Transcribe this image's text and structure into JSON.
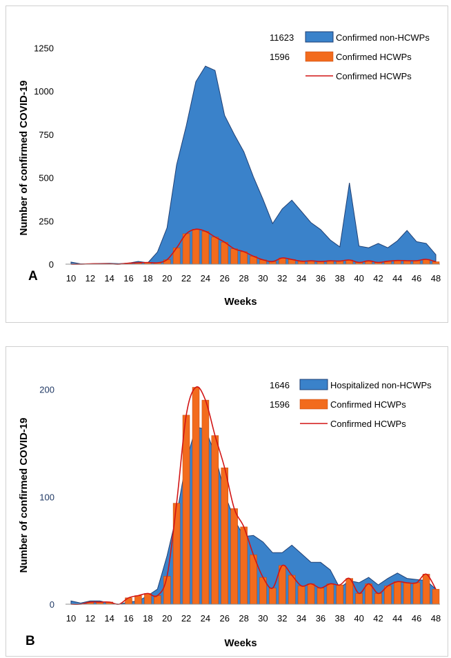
{
  "colors": {
    "blue": "#3a82ca",
    "blue_edge": "#1f3f73",
    "orange": "#f26b1d",
    "orange_edge": "#c0440a",
    "line": "#d21414"
  },
  "chart_data": [
    {
      "panel_label": "A",
      "type": "area",
      "xlabel": "Weeks",
      "ylabel": "Number of confirmed COVID-19",
      "xlim": [
        10,
        48
      ],
      "ylim": [
        0,
        1300
      ],
      "yticks": [
        0,
        250,
        500,
        750,
        1000,
        1250
      ],
      "xticks": [
        10,
        12,
        14,
        16,
        18,
        20,
        22,
        24,
        26,
        28,
        30,
        32,
        34,
        36,
        38,
        40,
        42,
        44,
        46,
        48
      ],
      "weeks": [
        10,
        11,
        12,
        13,
        14,
        15,
        16,
        17,
        18,
        19,
        20,
        21,
        22,
        23,
        24,
        25,
        26,
        27,
        28,
        29,
        30,
        31,
        32,
        33,
        34,
        35,
        36,
        37,
        38,
        39,
        40,
        41,
        42,
        43,
        44,
        45,
        46,
        47,
        48
      ],
      "legend": [
        {
          "total": "11623",
          "label": "Confirmed non-HCWPs",
          "kind": "area"
        },
        {
          "total": "1596",
          "label": "Confirmed HCWPs",
          "kind": "bar"
        },
        {
          "total": "",
          "label": "Confirmed HCWPs",
          "kind": "line"
        }
      ],
      "series": [
        {
          "name": "Confirmed non-HCWPs",
          "kind": "area",
          "values": [
            12,
            2,
            2,
            4,
            5,
            3,
            6,
            16,
            8,
            70,
            210,
            575,
            800,
            1055,
            1145,
            1120,
            860,
            750,
            650,
            505,
            375,
            235,
            320,
            370,
            305,
            240,
            200,
            140,
            100,
            470,
            105,
            95,
            120,
            95,
            135,
            195,
            130,
            120,
            55
          ]
        },
        {
          "name": "Confirmed HCWPs",
          "kind": "bar",
          "values": [
            0,
            0,
            2,
            2,
            2,
            0,
            6,
            8,
            10,
            8,
            26,
            94,
            176,
            202,
            190,
            157,
            127,
            89,
            72,
            46,
            25,
            15,
            36,
            27,
            17,
            19,
            15,
            19,
            18,
            24,
            10,
            19,
            10,
            17,
            21,
            20,
            20,
            28,
            14
          ]
        },
        {
          "name": "Confirmed HCWPs",
          "kind": "line",
          "values": [
            0,
            0,
            2,
            2,
            2,
            0,
            6,
            8,
            10,
            8,
            26,
            94,
            176,
            202,
            190,
            157,
            127,
            89,
            72,
            46,
            25,
            15,
            36,
            27,
            17,
            19,
            15,
            19,
            18,
            24,
            10,
            19,
            10,
            17,
            21,
            20,
            20,
            28,
            14
          ]
        }
      ]
    },
    {
      "panel_label": "B",
      "type": "area",
      "xlabel": "Weeks",
      "ylabel": "Number of confirmed COVID-19",
      "xlim": [
        10,
        48
      ],
      "ylim": [
        0,
        210
      ],
      "yticks": [
        0,
        100,
        200
      ],
      "xticks": [
        10,
        12,
        14,
        16,
        18,
        20,
        22,
        24,
        26,
        28,
        30,
        32,
        34,
        36,
        38,
        40,
        42,
        44,
        46,
        48
      ],
      "weeks": [
        10,
        11,
        12,
        13,
        14,
        15,
        16,
        17,
        18,
        19,
        20,
        21,
        22,
        23,
        24,
        25,
        26,
        27,
        28,
        29,
        30,
        31,
        32,
        33,
        34,
        35,
        36,
        37,
        38,
        39,
        40,
        41,
        42,
        43,
        44,
        45,
        46,
        47,
        48
      ],
      "legend": [
        {
          "total": "1646",
          "label": "Hospitalized non-HCWPs",
          "kind": "area"
        },
        {
          "total": "1596",
          "label": "Confirmed HCWPs",
          "kind": "bar"
        },
        {
          "total": "",
          "label": "Confirmed HCWPs",
          "kind": "line"
        }
      ],
      "series": [
        {
          "name": "Hospitalized non-HCWPs",
          "kind": "area",
          "values": [
            3,
            1,
            3,
            3,
            1,
            0,
            2,
            3,
            8,
            14,
            45,
            83,
            133,
            165,
            163,
            140,
            103,
            79,
            63,
            64,
            58,
            48,
            48,
            55,
            47,
            39,
            39,
            32,
            15,
            22,
            20,
            25,
            18,
            24,
            29,
            24,
            23,
            22,
            14
          ]
        },
        {
          "name": "Confirmed HCWPs",
          "kind": "bar",
          "values": [
            0,
            0,
            2,
            2,
            2,
            0,
            6,
            8,
            10,
            8,
            26,
            94,
            176,
            202,
            190,
            157,
            127,
            89,
            72,
            46,
            25,
            15,
            36,
            27,
            17,
            19,
            15,
            19,
            18,
            24,
            10,
            19,
            10,
            17,
            21,
            20,
            20,
            28,
            14
          ]
        },
        {
          "name": "Confirmed HCWPs",
          "kind": "line",
          "values": [
            0,
            0,
            2,
            2,
            2,
            0,
            6,
            8,
            10,
            8,
            26,
            94,
            176,
            202,
            190,
            157,
            127,
            89,
            72,
            46,
            25,
            15,
            36,
            27,
            17,
            19,
            15,
            19,
            18,
            24,
            10,
            19,
            10,
            17,
            21,
            20,
            20,
            28,
            14
          ]
        }
      ]
    }
  ]
}
